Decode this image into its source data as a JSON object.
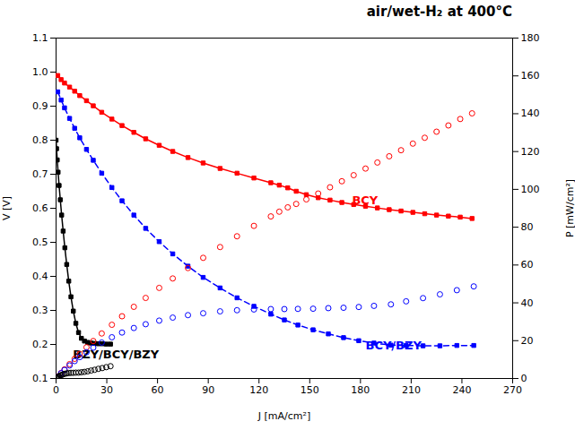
{
  "chart_data": {
    "type": "line",
    "title": "air/wet-H₂ at 400°C",
    "x_label": "J [mA/cm²]",
    "y_label": "V [V]",
    "y2_label": "P [mW/cm²]",
    "xlim": [
      0,
      270
    ],
    "ylim": [
      0.1,
      1.1
    ],
    "y2lim": [
      0,
      180
    ],
    "xticks": [
      0,
      30,
      60,
      90,
      120,
      150,
      180,
      210,
      240,
      270
    ],
    "yticks": [
      0.1,
      0.2,
      0.3,
      0.4,
      0.5,
      0.6,
      0.7,
      0.8,
      0.9,
      {
        "value": 1.0,
        "label": "1.0"
      },
      1.1
    ],
    "y2ticks": [
      0,
      20,
      40,
      60,
      80,
      100,
      120,
      140,
      160,
      180
    ],
    "grid": false,
    "series": [
      {
        "type": "line",
        "color": "red",
        "marker": "square",
        "line_style": "solid",
        "x": [
          1,
          3,
          5,
          8,
          11,
          14,
          18,
          22,
          27,
          33,
          39,
          46,
          53,
          61,
          69,
          78,
          87,
          97,
          107,
          117,
          127,
          132,
          137,
          142,
          148,
          155,
          162,
          169,
          176,
          183,
          190,
          197,
          204,
          211,
          218,
          225,
          232,
          239,
          246
        ],
        "values": [
          0.99,
          0.978,
          0.968,
          0.956,
          0.944,
          0.931,
          0.916,
          0.901,
          0.882,
          0.862,
          0.843,
          0.823,
          0.804,
          0.785,
          0.767,
          0.749,
          0.733,
          0.717,
          0.703,
          0.689,
          0.675,
          0.668,
          0.66,
          0.65,
          0.64,
          0.631,
          0.624,
          0.617,
          0.611,
          0.606,
          0.601,
          0.596,
          0.592,
          0.588,
          0.584,
          0.58,
          0.577,
          0.574,
          0.57
        ]
      },
      {
        "type": "scatter",
        "axis": "y2",
        "color": "red",
        "marker": "circle",
        "x": [
          1,
          3,
          5,
          8,
          11,
          14,
          18,
          22,
          27,
          33,
          39,
          46,
          53,
          61,
          69,
          78,
          87,
          97,
          107,
          117,
          127,
          132,
          137,
          142,
          148,
          155,
          162,
          169,
          176,
          183,
          190,
          197,
          204,
          211,
          218,
          225,
          232,
          239,
          246
        ],
        "values": [
          1.0,
          2.9,
          4.8,
          7.6,
          10.4,
          13.0,
          16.5,
          19.8,
          23.8,
          28.4,
          32.9,
          37.9,
          42.6,
          47.9,
          52.9,
          58.4,
          63.8,
          69.5,
          75.2,
          80.7,
          85.7,
          88.2,
          90.5,
          92.3,
          94.7,
          97.8,
          101.1,
          104.3,
          107.5,
          111.0,
          114.2,
          117.5,
          120.7,
          124.2,
          127.3,
          130.5,
          133.8,
          137.2,
          140.2
        ]
      },
      {
        "type": "line",
        "color": "blue",
        "marker": "square",
        "line_style": "dashed",
        "x": [
          1,
          3,
          5,
          8,
          11,
          14,
          18,
          22,
          27,
          33,
          39,
          46,
          53,
          61,
          69,
          78,
          87,
          97,
          107,
          117,
          127,
          135,
          143,
          152,
          161,
          170,
          179,
          188,
          198,
          207,
          217,
          227,
          237,
          247
        ],
        "values": [
          0.942,
          0.918,
          0.895,
          0.864,
          0.835,
          0.807,
          0.773,
          0.741,
          0.703,
          0.661,
          0.622,
          0.58,
          0.541,
          0.502,
          0.466,
          0.43,
          0.397,
          0.366,
          0.337,
          0.312,
          0.289,
          0.272,
          0.257,
          0.243,
          0.231,
          0.22,
          0.211,
          0.204,
          0.198,
          0.197,
          0.196,
          0.196,
          0.197,
          0.197
        ]
      },
      {
        "type": "scatter",
        "axis": "y2",
        "color": "blue",
        "marker": "circle",
        "x": [
          1,
          3,
          5,
          8,
          11,
          14,
          18,
          22,
          27,
          33,
          39,
          46,
          53,
          61,
          69,
          78,
          87,
          97,
          107,
          117,
          127,
          135,
          143,
          152,
          161,
          170,
          179,
          188,
          198,
          207,
          217,
          227,
          237,
          247
        ],
        "values": [
          0.9,
          2.8,
          4.5,
          6.9,
          9.2,
          11.3,
          13.9,
          16.3,
          19.0,
          21.8,
          24.3,
          26.7,
          28.7,
          30.6,
          32.2,
          33.5,
          34.5,
          35.5,
          36.1,
          36.5,
          36.7,
          36.7,
          36.8,
          36.9,
          37.2,
          37.4,
          37.8,
          38.4,
          39.2,
          40.8,
          42.5,
          44.5,
          46.7,
          48.7
        ]
      },
      {
        "type": "line",
        "color": "black",
        "marker": "square",
        "line_style": "solid",
        "x": [
          0.0,
          0.3,
          0.7,
          1.2,
          1.8,
          2.5,
          3.3,
          4.2,
          5.2,
          6.3,
          7.5,
          8.8,
          10.2,
          11.7,
          13.3,
          15.0,
          16.8,
          18.7,
          20.7,
          22.8,
          25.0,
          27.3,
          29.7,
          32.2
        ],
        "values": [
          0.8,
          0.775,
          0.742,
          0.706,
          0.667,
          0.625,
          0.58,
          0.533,
          0.484,
          0.435,
          0.386,
          0.34,
          0.298,
          0.262,
          0.235,
          0.218,
          0.21,
          0.206,
          0.204,
          0.203,
          0.202,
          0.202,
          0.201,
          0.201
        ]
      },
      {
        "type": "scatter",
        "axis": "y2",
        "color": "black",
        "marker": "circle",
        "x": [
          0.0,
          0.3,
          0.7,
          1.2,
          1.8,
          2.5,
          3.3,
          4.2,
          5.2,
          6.3,
          7.5,
          8.8,
          10.2,
          11.7,
          13.3,
          15.0,
          16.8,
          18.7,
          20.7,
          22.8,
          25.0,
          27.3,
          29.7,
          32.2
        ],
        "values": [
          0.0,
          0.2,
          0.5,
          0.8,
          1.2,
          1.6,
          1.9,
          2.2,
          2.5,
          2.7,
          2.9,
          3.0,
          3.0,
          3.1,
          3.1,
          3.3,
          3.5,
          3.8,
          4.2,
          4.6,
          5.1,
          5.5,
          6.0,
          6.5
        ]
      }
    ],
    "annotations": [
      {
        "text": "BCY",
        "x": 175,
        "y": 0.612,
        "color": "red"
      },
      {
        "text": "BCY/BZY",
        "x": 183,
        "y": 0.185,
        "color": "blue"
      },
      {
        "text": "BZY/BCY/BZY",
        "x": 10,
        "y": 0.158,
        "color": "black"
      }
    ]
  }
}
